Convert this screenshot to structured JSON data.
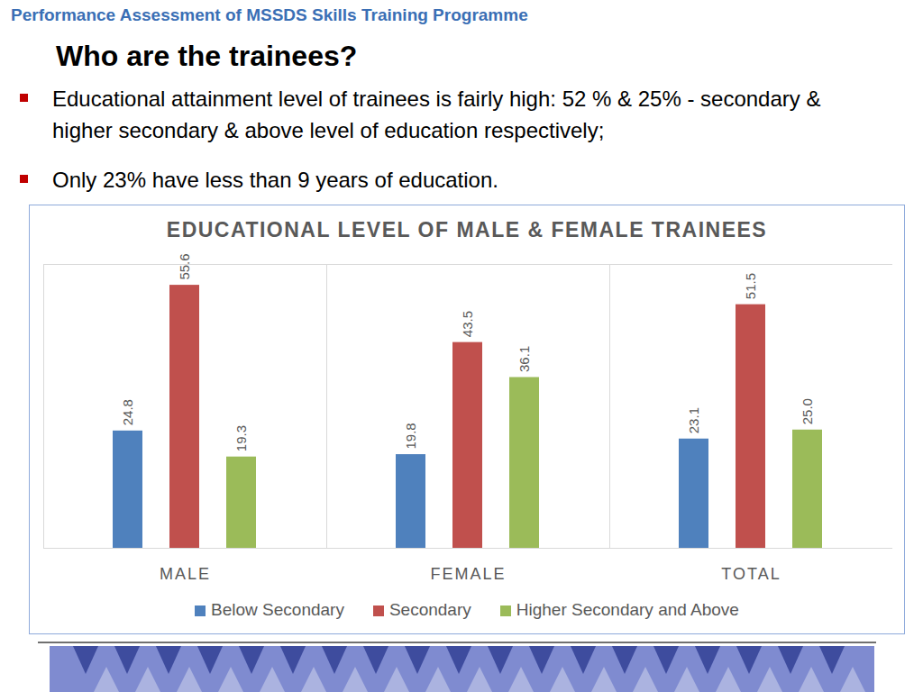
{
  "header": "Performance Assessment of MSSDS Skills Training Programme",
  "heading": "Who are the trainees?",
  "bullets": [
    "Educational attainment level of trainees is fairly high: 52 % & 25% - secondary & higher secondary & above level of education respectively;",
    "Only 23% have less than 9 years of education."
  ],
  "chart_data": {
    "type": "bar",
    "title": "EDUCATIONAL LEVEL OF MALE & FEMALE TRAINEES",
    "categories": [
      "MALE",
      "FEMALE",
      "TOTAL"
    ],
    "series": [
      {
        "name": "Below Secondary",
        "color": "#4f81bd",
        "values": [
          24.8,
          19.8,
          23.1
        ],
        "value_labels": [
          "24.8",
          "19.8",
          "23.1"
        ]
      },
      {
        "name": "Secondary",
        "color": "#c0504d",
        "values": [
          55.6,
          43.5,
          51.5
        ],
        "value_labels": [
          "55.6",
          "43.5",
          "51.5"
        ]
      },
      {
        "name": "Higher Secondary and Above",
        "color": "#9bbb59",
        "values": [
          19.3,
          36.1,
          25.0
        ],
        "value_labels": [
          "19.3",
          "36.1",
          "25.0"
        ]
      }
    ],
    "ylim": [
      0,
      60
    ],
    "grid": false,
    "data_labels": true,
    "tick_labels": "x",
    "legend": "bottom"
  }
}
